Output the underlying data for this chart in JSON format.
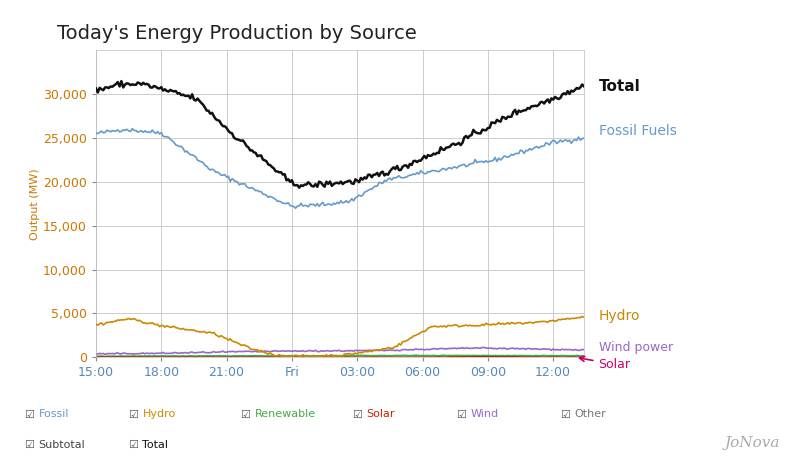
{
  "title": "Today's Energy Production by Source",
  "ylabel": "Output (MW)",
  "background_color": "#ffffff",
  "plot_bg_color": "#ffffff",
  "grid_color": "#cccccc",
  "x_labels": [
    "15:00",
    "18:00",
    "21:00",
    "Fri",
    "03:00",
    "06:00",
    "09:00",
    "12:00"
  ],
  "x_ticks_idx": [
    0,
    36,
    72,
    108,
    144,
    180,
    216,
    252
  ],
  "total_points": 270,
  "ylim": [
    0,
    35000
  ],
  "yticks": [
    0,
    5000,
    10000,
    15000,
    20000,
    25000,
    30000
  ],
  "ytick_color": "#cc7700",
  "xtick_color": "#5588bb",
  "series": {
    "total": {
      "color": "#111111",
      "linewidth": 1.8
    },
    "fossil": {
      "color": "#6699cc",
      "linewidth": 1.2
    },
    "hydro": {
      "color": "#cc8800",
      "linewidth": 1.2
    },
    "wind": {
      "color": "#9966cc",
      "linewidth": 1.2
    },
    "solar": {
      "color": "#993300",
      "linewidth": 1.2
    },
    "renewable": {
      "color": "#44aa44",
      "linewidth": 1.2
    }
  },
  "label_total": "Total",
  "label_fossil": "Fossil Fuels",
  "label_hydro": "Hydro",
  "label_wind": "Wind power",
  "label_solar": "Solar",
  "label_total_color": "#111111",
  "label_fossil_color": "#6699cc",
  "label_hydro_color": "#cc8800",
  "label_wind_color": "#9966cc",
  "label_solar_color": "#cc0066",
  "solar_arrow_color": "#cc0066",
  "legend_row1": [
    {
      "label": "Fossil",
      "color": "#6699cc"
    },
    {
      "label": "Hydro",
      "color": "#cc8800"
    },
    {
      "label": "Renewable",
      "color": "#44aa44"
    },
    {
      "label": "Solar",
      "color": "#cc2200"
    },
    {
      "label": "Wind",
      "color": "#9966cc"
    },
    {
      "label": "Other",
      "color": "#777777"
    }
  ],
  "legend_row2": [
    {
      "label": "Subtotal",
      "color": "#444444"
    },
    {
      "label": "Total",
      "color": "#111111"
    }
  ],
  "jonova_color": "#aaaaaa",
  "title_fontsize": 14,
  "tick_fontsize": 9,
  "label_fontsize": 10,
  "legend_fontsize": 8
}
